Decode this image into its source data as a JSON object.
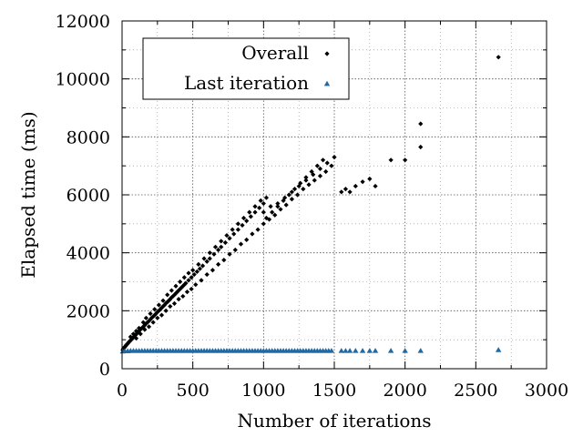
{
  "chart_data": {
    "type": "scatter",
    "title": "",
    "xlabel": "Number of iterations",
    "ylabel": "Elapsed time (ms)",
    "xlim": [
      0,
      3000
    ],
    "ylim": [
      0,
      12000
    ],
    "xticks": [
      0,
      500,
      1000,
      1500,
      2000,
      2500,
      3000
    ],
    "yticks": [
      0,
      2000,
      4000,
      6000,
      8000,
      10000,
      12000
    ],
    "x_minor_ticks": [
      250,
      750,
      1250,
      1750,
      2250,
      2750
    ],
    "y_minor_ticks": [
      1000,
      3000,
      5000,
      7000,
      9000,
      11000
    ],
    "grid": "dotted",
    "legend": "top-left",
    "series": [
      {
        "name": "Overall",
        "marker": "diamond",
        "color": "#000000",
        "points": [
          [
            5,
            650
          ],
          [
            10,
            700
          ],
          [
            15,
            720
          ],
          [
            20,
            760
          ],
          [
            25,
            780
          ],
          [
            30,
            820
          ],
          [
            35,
            840
          ],
          [
            40,
            870
          ],
          [
            45,
            900
          ],
          [
            50,
            930
          ],
          [
            55,
            950
          ],
          [
            60,
            980
          ],
          [
            65,
            1000
          ],
          [
            70,
            1030
          ],
          [
            75,
            1060
          ],
          [
            80,
            1080
          ],
          [
            85,
            1110
          ],
          [
            90,
            1140
          ],
          [
            95,
            1160
          ],
          [
            100,
            1190
          ],
          [
            105,
            1220
          ],
          [
            110,
            1250
          ],
          [
            115,
            1270
          ],
          [
            120,
            1300
          ],
          [
            125,
            1330
          ],
          [
            130,
            1360
          ],
          [
            140,
            1400
          ],
          [
            150,
            1450
          ],
          [
            160,
            1500
          ],
          [
            170,
            1560
          ],
          [
            180,
            1600
          ],
          [
            190,
            1650
          ],
          [
            200,
            1700
          ],
          [
            210,
            1760
          ],
          [
            220,
            1800
          ],
          [
            230,
            1850
          ],
          [
            240,
            1900
          ],
          [
            250,
            1960
          ],
          [
            260,
            2000
          ],
          [
            270,
            2050
          ],
          [
            280,
            2100
          ],
          [
            290,
            2150
          ],
          [
            300,
            2200
          ],
          [
            310,
            2260
          ],
          [
            320,
            2300
          ],
          [
            330,
            2350
          ],
          [
            340,
            2400
          ],
          [
            350,
            2460
          ],
          [
            360,
            2500
          ],
          [
            370,
            2550
          ],
          [
            380,
            2600
          ],
          [
            390,
            2650
          ],
          [
            400,
            2700
          ],
          [
            410,
            2750
          ],
          [
            420,
            2800
          ],
          [
            430,
            2850
          ],
          [
            440,
            2900
          ],
          [
            450,
            2950
          ],
          [
            470,
            3050
          ],
          [
            490,
            3150
          ],
          [
            510,
            3250
          ],
          [
            530,
            3350
          ],
          [
            550,
            3450
          ],
          [
            570,
            3550
          ],
          [
            600,
            3700
          ],
          [
            620,
            3800
          ],
          [
            650,
            3950
          ],
          [
            680,
            4100
          ],
          [
            700,
            4200
          ],
          [
            730,
            4350
          ],
          [
            760,
            4500
          ],
          [
            790,
            4650
          ],
          [
            820,
            4800
          ],
          [
            850,
            4950
          ],
          [
            880,
            5100
          ],
          [
            910,
            5250
          ],
          [
            940,
            5400
          ],
          [
            970,
            5550
          ],
          [
            1000,
            5700
          ],
          [
            60,
            1100
          ],
          [
            80,
            1200
          ],
          [
            100,
            1300
          ],
          [
            120,
            1400
          ],
          [
            150,
            1600
          ],
          [
            170,
            1750
          ],
          [
            200,
            1900
          ],
          [
            230,
            2050
          ],
          [
            260,
            2200
          ],
          [
            290,
            2350
          ],
          [
            320,
            2550
          ],
          [
            350,
            2700
          ],
          [
            380,
            2850
          ],
          [
            410,
            3000
          ],
          [
            440,
            3150
          ],
          [
            470,
            3300
          ],
          [
            500,
            3400
          ],
          [
            540,
            3600
          ],
          [
            580,
            3800
          ],
          [
            620,
            4000
          ],
          [
            660,
            4200
          ],
          [
            700,
            4400
          ],
          [
            740,
            4600
          ],
          [
            780,
            4800
          ],
          [
            820,
            5000
          ],
          [
            860,
            5200
          ],
          [
            900,
            5400
          ],
          [
            940,
            5600
          ],
          [
            980,
            5800
          ],
          [
            1020,
            5900
          ],
          [
            100,
            1050
          ],
          [
            130,
            1200
          ],
          [
            160,
            1350
          ],
          [
            190,
            1450
          ],
          [
            220,
            1600
          ],
          [
            250,
            1750
          ],
          [
            280,
            1850
          ],
          [
            310,
            2000
          ],
          [
            340,
            2150
          ],
          [
            370,
            2250
          ],
          [
            400,
            2400
          ],
          [
            430,
            2500
          ],
          [
            460,
            2650
          ],
          [
            490,
            2750
          ],
          [
            520,
            2900
          ],
          [
            560,
            3050
          ],
          [
            600,
            3250
          ],
          [
            640,
            3400
          ],
          [
            680,
            3600
          ],
          [
            720,
            3750
          ],
          [
            760,
            3950
          ],
          [
            800,
            4100
          ],
          [
            840,
            4300
          ],
          [
            880,
            4450
          ],
          [
            920,
            4650
          ],
          [
            960,
            4800
          ],
          [
            1000,
            5000
          ],
          [
            1040,
            5150
          ],
          [
            1080,
            5300
          ],
          [
            1120,
            5500
          ],
          [
            1160,
            5650
          ],
          [
            1200,
            5850
          ],
          [
            1240,
            6000
          ],
          [
            1280,
            6200
          ],
          [
            1320,
            6350
          ],
          [
            1360,
            6500
          ],
          [
            1400,
            6650
          ],
          [
            1440,
            6800
          ],
          [
            1480,
            7000
          ],
          [
            1020,
            5200
          ],
          [
            1060,
            5400
          ],
          [
            1100,
            5600
          ],
          [
            1140,
            5800
          ],
          [
            1180,
            6000
          ],
          [
            1220,
            6200
          ],
          [
            1260,
            6400
          ],
          [
            1300,
            6600
          ],
          [
            1340,
            6800
          ],
          [
            1380,
            7000
          ],
          [
            1420,
            7200
          ],
          [
            1000,
            5400
          ],
          [
            1050,
            5600
          ],
          [
            1100,
            5700
          ],
          [
            1150,
            5900
          ],
          [
            1200,
            6100
          ],
          [
            1250,
            6300
          ],
          [
            1300,
            6500
          ],
          [
            1350,
            6700
          ],
          [
            1400,
            6900
          ],
          [
            1450,
            7100
          ],
          [
            1500,
            7300
          ],
          [
            1550,
            6100
          ],
          [
            1580,
            6200
          ],
          [
            1610,
            6100
          ],
          [
            1650,
            6300
          ],
          [
            1700,
            6450
          ],
          [
            1750,
            6550
          ],
          [
            1790,
            6300
          ],
          [
            1900,
            7200
          ],
          [
            2000,
            7200
          ],
          [
            2110,
            7650
          ],
          [
            2110,
            8450
          ],
          [
            2660,
            10750
          ]
        ]
      },
      {
        "name": "Last iteration",
        "marker": "triangle",
        "color": "#1f6aa5",
        "points": [
          [
            5,
            600
          ],
          [
            20,
            610
          ],
          [
            40,
            610
          ],
          [
            60,
            620
          ],
          [
            80,
            620
          ],
          [
            100,
            620
          ],
          [
            120,
            620
          ],
          [
            140,
            620
          ],
          [
            160,
            620
          ],
          [
            180,
            620
          ],
          [
            200,
            620
          ],
          [
            220,
            620
          ],
          [
            240,
            620
          ],
          [
            260,
            620
          ],
          [
            280,
            620
          ],
          [
            300,
            620
          ],
          [
            320,
            620
          ],
          [
            340,
            620
          ],
          [
            360,
            620
          ],
          [
            380,
            620
          ],
          [
            400,
            620
          ],
          [
            420,
            620
          ],
          [
            440,
            620
          ],
          [
            460,
            620
          ],
          [
            480,
            620
          ],
          [
            500,
            620
          ],
          [
            520,
            620
          ],
          [
            540,
            620
          ],
          [
            560,
            620
          ],
          [
            580,
            620
          ],
          [
            600,
            620
          ],
          [
            620,
            620
          ],
          [
            640,
            620
          ],
          [
            660,
            620
          ],
          [
            680,
            620
          ],
          [
            700,
            620
          ],
          [
            720,
            620
          ],
          [
            740,
            620
          ],
          [
            760,
            620
          ],
          [
            780,
            620
          ],
          [
            800,
            620
          ],
          [
            820,
            620
          ],
          [
            840,
            620
          ],
          [
            860,
            620
          ],
          [
            880,
            620
          ],
          [
            900,
            620
          ],
          [
            920,
            620
          ],
          [
            940,
            620
          ],
          [
            960,
            620
          ],
          [
            980,
            620
          ],
          [
            1000,
            620
          ],
          [
            1020,
            620
          ],
          [
            1040,
            620
          ],
          [
            1060,
            620
          ],
          [
            1080,
            620
          ],
          [
            1100,
            620
          ],
          [
            1120,
            620
          ],
          [
            1140,
            620
          ],
          [
            1160,
            620
          ],
          [
            1180,
            620
          ],
          [
            1200,
            620
          ],
          [
            1220,
            620
          ],
          [
            1240,
            620
          ],
          [
            1260,
            620
          ],
          [
            1280,
            620
          ],
          [
            1300,
            620
          ],
          [
            1320,
            620
          ],
          [
            1340,
            620
          ],
          [
            1360,
            620
          ],
          [
            1380,
            620
          ],
          [
            1400,
            620
          ],
          [
            1420,
            620
          ],
          [
            1440,
            620
          ],
          [
            1460,
            620
          ],
          [
            1480,
            620
          ],
          [
            1550,
            620
          ],
          [
            1580,
            620
          ],
          [
            1610,
            620
          ],
          [
            1650,
            620
          ],
          [
            1700,
            620
          ],
          [
            1750,
            620
          ],
          [
            1790,
            620
          ],
          [
            1900,
            620
          ],
          [
            2000,
            620
          ],
          [
            2110,
            620
          ],
          [
            2660,
            650
          ]
        ]
      }
    ]
  }
}
